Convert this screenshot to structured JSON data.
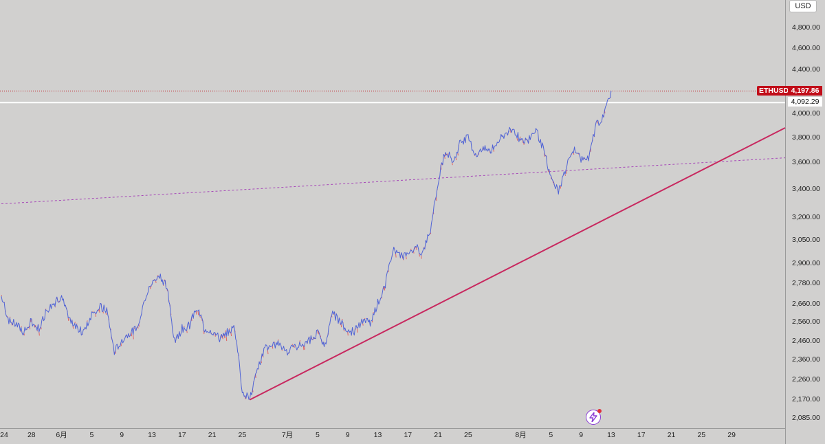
{
  "chart_data": {
    "type": "line",
    "symbol": "ETHUSD",
    "currency": "USD",
    "last_price": "4,197.86",
    "horizontal_line_price": "4,092.29",
    "colors": {
      "background": "#d1d0cf",
      "price_line": "#4f63d6",
      "up_wick": "#e0605f",
      "trendline": "#c8285f",
      "dashed_line": "#a646b8",
      "last_price_label": "#c10d19",
      "horizontal_line": "#ffffff"
    },
    "y_ticks": [
      "4,800.00",
      "4,600.00",
      "4,400.00",
      "4,000.00",
      "3,800.00",
      "3,600.00",
      "3,400.00",
      "3,200.00",
      "3,050.00",
      "2,900.00",
      "2,780.00",
      "2,660.00",
      "2,560.00",
      "2,460.00",
      "2,360.00",
      "2,260.00",
      "2,170.00",
      "2,085.00"
    ],
    "x_ticks": [
      "24",
      "28",
      "6月",
      "5",
      "9",
      "13",
      "17",
      "21",
      "25",
      "7月",
      "5",
      "9",
      "13",
      "17",
      "21",
      "25",
      "8月",
      "5",
      "9",
      "13",
      "17",
      "21",
      "25",
      "29"
    ],
    "price_path": {
      "x_start": "2025-05-24",
      "x_end": "2025-08-10",
      "points": [
        [
          0,
          2700
        ],
        [
          1,
          2560
        ],
        [
          2,
          2540
        ],
        [
          3,
          2500
        ],
        [
          4,
          2560
        ],
        [
          5,
          2520
        ],
        [
          6,
          2620
        ],
        [
          7,
          2660
        ],
        [
          8,
          2700
        ],
        [
          9,
          2560
        ],
        [
          10,
          2520
        ],
        [
          11,
          2500
        ],
        [
          12,
          2600
        ],
        [
          13,
          2640
        ],
        [
          14,
          2620
        ],
        [
          15,
          2400
        ],
        [
          16,
          2460
        ],
        [
          17,
          2500
        ],
        [
          18,
          2520
        ],
        [
          19,
          2680
        ],
        [
          20,
          2780
        ],
        [
          21,
          2830
        ],
        [
          22,
          2750
        ],
        [
          23,
          2450
        ],
        [
          24,
          2520
        ],
        [
          25,
          2540
        ],
        [
          26,
          2640
        ],
        [
          27,
          2520
        ],
        [
          28,
          2510
        ],
        [
          29,
          2470
        ],
        [
          30,
          2500
        ],
        [
          31,
          2530
        ],
        [
          32,
          2200
        ],
        [
          33,
          2165
        ],
        [
          34,
          2300
        ],
        [
          35,
          2420
        ],
        [
          36,
          2430
        ],
        [
          37,
          2440
        ],
        [
          38,
          2400
        ],
        [
          39,
          2420
        ],
        [
          40,
          2440
        ],
        [
          41,
          2460
        ],
        [
          42,
          2500
        ],
        [
          43,
          2430
        ],
        [
          44,
          2600
        ],
        [
          45,
          2560
        ],
        [
          46,
          2500
        ],
        [
          47,
          2510
        ],
        [
          48,
          2560
        ],
        [
          49,
          2550
        ],
        [
          50,
          2660
        ],
        [
          51,
          2760
        ],
        [
          52,
          2990
        ],
        [
          53,
          2950
        ],
        [
          54,
          2940
        ],
        [
          55,
          3000
        ],
        [
          56,
          2960
        ],
        [
          57,
          3120
        ],
        [
          58,
          3450
        ],
        [
          59,
          3700
        ],
        [
          60,
          3600
        ],
        [
          61,
          3760
        ],
        [
          62,
          3790
        ],
        [
          63,
          3650
        ],
        [
          64,
          3700
        ],
        [
          65,
          3690
        ],
        [
          66,
          3760
        ],
        [
          67,
          3830
        ],
        [
          68,
          3860
        ],
        [
          69,
          3770
        ],
        [
          70,
          3780
        ],
        [
          71,
          3860
        ],
        [
          72,
          3700
        ],
        [
          73,
          3480
        ],
        [
          74,
          3380
        ],
        [
          75,
          3550
        ],
        [
          76,
          3700
        ],
        [
          77,
          3620
        ],
        [
          78,
          3620
        ],
        [
          79,
          3900
        ],
        [
          80,
          3960
        ],
        [
          81,
          4200
        ]
      ]
    },
    "trendline": {
      "from": [
        33,
        2165
      ],
      "to": [
        119,
        4380
      ]
    },
    "dashed_line": {
      "from": [
        0,
        3290
      ],
      "to": [
        116,
        3630
      ]
    }
  }
}
